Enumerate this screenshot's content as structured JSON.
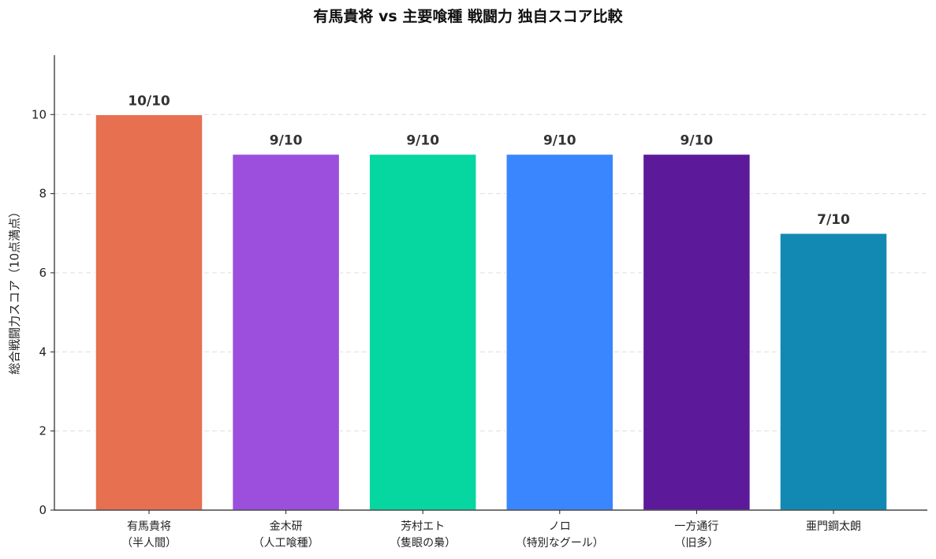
{
  "chart_data": {
    "type": "bar",
    "title": "有馬貴将 vs 主要喰種 戦闘力 独自スコア比較",
    "ylabel": "総合戦闘力スコア（10点満点）",
    "xlabel": "",
    "categories": [
      [
        "有馬貴将",
        "（半人間）"
      ],
      [
        "金木研",
        "（人工喰種）"
      ],
      [
        "芳村エト",
        "（隻眼の梟）"
      ],
      [
        "ノロ",
        "（特別なグール）"
      ],
      [
        "一方通行",
        "（旧多）"
      ],
      [
        "亜門鋼太朗"
      ]
    ],
    "values": [
      10,
      9,
      9,
      9,
      9,
      7
    ],
    "data_labels": [
      "10/10",
      "9/10",
      "9/10",
      "9/10",
      "9/10",
      "7/10"
    ],
    "colors": [
      "#E67050",
      "#9B4FDC",
      "#06D6A0",
      "#3A86FF",
      "#5C1A9A",
      "#1289B3"
    ],
    "ylim": [
      0,
      11.5
    ],
    "yticks": [
      0,
      2,
      4,
      6,
      8,
      10
    ],
    "grid": true,
    "legend": "none"
  }
}
